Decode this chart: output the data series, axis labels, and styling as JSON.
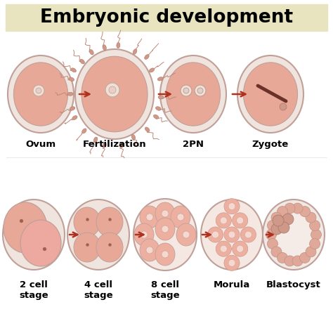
{
  "title": "Embryonic development",
  "title_bg_color": "#e8e4c0",
  "title_fontsize": 19,
  "bg_color": "#ffffff",
  "zona_fill": "#f5e8e2",
  "zona_edge": "#c8a8a0",
  "cell_fill": "#e8a898",
  "cell_fill2": "#f0b8a8",
  "cell_fill_light": "#f5cfc0",
  "morula_fill": "#f0c0b0",
  "blast_zona": "#e0d0c8",
  "blast_edge": "#b09888",
  "blast_cell": "#d8b0a0",
  "blast_inner": "#f0e0d8",
  "border_color": "#b89090",
  "arrow_color": "#b03020",
  "row1_labels": [
    "Ovum",
    "Fertilization",
    "2PN",
    "Zygote"
  ],
  "row2_labels": [
    "2 cell\nstage",
    "4 cell\nstage",
    "8 cell\nstage",
    "Morula",
    "Blastocyst"
  ],
  "label_fontsize": 9.5
}
